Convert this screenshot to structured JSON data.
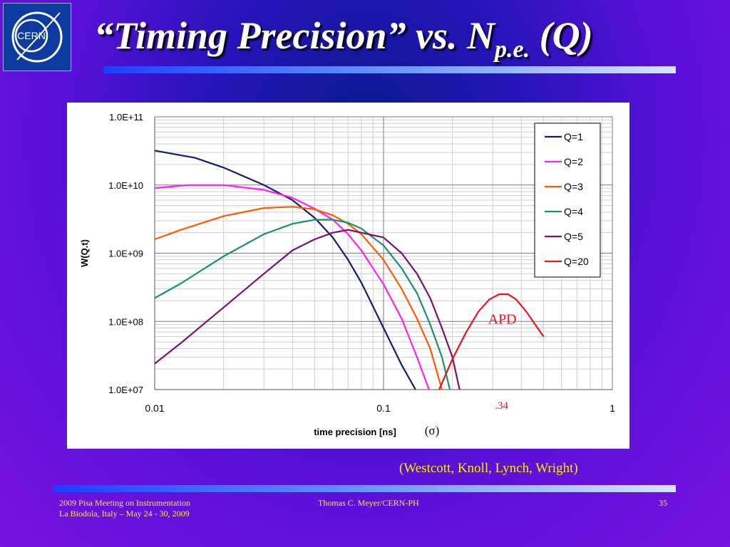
{
  "logo": {
    "text": "CERN"
  },
  "title": {
    "main": "“Timing Precision” vs. N",
    "subscript": "p.e.",
    "tail": " (Q)"
  },
  "credit": "(Westcott, Knoll, Lynch, Wright)",
  "footer": {
    "left_line1": "2009 Pisa Meeting on Instrumentation",
    "left_line2": "La Biodola, Italy – May 24 - 30, 2009",
    "center": "Thomas C. Meyer/CERN-PH",
    "page": "35"
  },
  "colors": {
    "accent_rule": "#5f8cff",
    "footer_text": "#ffe060",
    "credit_text": "#ffea00",
    "annotation": "#e8141e"
  },
  "chart_data": {
    "type": "line",
    "xlabel": "time precision [ns]",
    "ylabel": "W(Q.t)",
    "xscale": "log",
    "yscale": "log",
    "xlim": [
      0.01,
      1
    ],
    "ylim": [
      10000000,
      100000000000
    ],
    "xticks": [
      "0.01",
      "0.1",
      "1"
    ],
    "yticks": [
      "1.0E+07",
      "1.0E+08",
      "1.0E+09",
      "1.0E+10",
      "1.0E+11"
    ],
    "grid": true,
    "legend": "right",
    "series": [
      {
        "name": "Q=1",
        "color": "#1a1a6e",
        "points": [
          [
            0.01,
            32000000000.0
          ],
          [
            0.015,
            25000000000.0
          ],
          [
            0.02,
            18000000000.0
          ],
          [
            0.03,
            10000000000.0
          ],
          [
            0.04,
            6000000000.0
          ],
          [
            0.05,
            3300000000.0
          ],
          [
            0.06,
            1700000000.0
          ],
          [
            0.07,
            800000000.0
          ],
          [
            0.08,
            370000000.0
          ],
          [
            0.1,
            80000000.0
          ],
          [
            0.12,
            23000000.0
          ],
          [
            0.138,
            10000000.0
          ]
        ]
      },
      {
        "name": "Q=2",
        "color": "#ff22ee",
        "points": [
          [
            0.01,
            9000000000.0
          ],
          [
            0.014,
            10000000000.0
          ],
          [
            0.02,
            10000000000.0
          ],
          [
            0.03,
            8500000000.0
          ],
          [
            0.04,
            6500000000.0
          ],
          [
            0.05,
            4500000000.0
          ],
          [
            0.06,
            3100000000.0
          ],
          [
            0.07,
            1900000000.0
          ],
          [
            0.08,
            1100000000.0
          ],
          [
            0.1,
            350000000.0
          ],
          [
            0.12,
            110000000.0
          ],
          [
            0.14,
            30000000.0
          ],
          [
            0.158,
            10000000.0
          ]
        ]
      },
      {
        "name": "Q=3",
        "color": "#ff5a00",
        "points": [
          [
            0.01,
            1600000000.0
          ],
          [
            0.013,
            2200000000.0
          ],
          [
            0.02,
            3500000000.0
          ],
          [
            0.03,
            4600000000.0
          ],
          [
            0.04,
            4800000000.0
          ],
          [
            0.05,
            4400000000.0
          ],
          [
            0.06,
            3600000000.0
          ],
          [
            0.07,
            2700000000.0
          ],
          [
            0.08,
            1900000000.0
          ],
          [
            0.1,
            800000000.0
          ],
          [
            0.12,
            300000000.0
          ],
          [
            0.14,
            110000000.0
          ],
          [
            0.16,
            40000000.0
          ],
          [
            0.18,
            10000000.0
          ]
        ]
      },
      {
        "name": "Q=4",
        "color": "#1a9070",
        "points": [
          [
            0.01,
            220000000.0
          ],
          [
            0.013,
            360000000.0
          ],
          [
            0.02,
            900000000.0
          ],
          [
            0.03,
            1900000000.0
          ],
          [
            0.04,
            2700000000.0
          ],
          [
            0.05,
            3100000000.0
          ],
          [
            0.06,
            3100000000.0
          ],
          [
            0.07,
            2800000000.0
          ],
          [
            0.08,
            2300000000.0
          ],
          [
            0.1,
            1300000000.0
          ],
          [
            0.12,
            600000000.0
          ],
          [
            0.14,
            260000000.0
          ],
          [
            0.16,
            90000000.0
          ],
          [
            0.18,
            30000000.0
          ],
          [
            0.195,
            10000000.0
          ]
        ]
      },
      {
        "name": "Q=5",
        "color": "#7a1070",
        "points": [
          [
            0.01,
            24000000.0
          ],
          [
            0.013,
            48000000.0
          ],
          [
            0.02,
            160000000.0
          ],
          [
            0.03,
            500000000.0
          ],
          [
            0.04,
            1100000000.0
          ],
          [
            0.05,
            1600000000.0
          ],
          [
            0.06,
            2000000000.0
          ],
          [
            0.07,
            2200000000.0
          ],
          [
            0.08,
            2000000000.0
          ],
          [
            0.1,
            1700000000.0
          ],
          [
            0.12,
            1000000000.0
          ],
          [
            0.14,
            500000000.0
          ],
          [
            0.16,
            220000000.0
          ],
          [
            0.18,
            80000000.0
          ],
          [
            0.2,
            30000000.0
          ],
          [
            0.215,
            10000000.0
          ]
        ]
      },
      {
        "name": "Q=20",
        "color": "#e8141e",
        "points": [
          [
            0.175,
            10000000.0
          ],
          [
            0.2,
            28000000.0
          ],
          [
            0.23,
            70000000.0
          ],
          [
            0.26,
            140000000.0
          ],
          [
            0.29,
            210000000.0
          ],
          [
            0.32,
            250000000.0
          ],
          [
            0.35,
            250000000.0
          ],
          [
            0.38,
            210000000.0
          ],
          [
            0.42,
            140000000.0
          ],
          [
            0.46,
            90000000.0
          ],
          [
            0.5,
            60000000.0
          ]
        ]
      }
    ],
    "annotations": [
      {
        "text": "APD",
        "x": 0.34,
        "y": 60000000.0
      },
      {
        "text": ".34",
        "x": 0.34,
        "y": 5000000.0
      },
      {
        "text": "(σ)",
        "x": 0.34,
        "y": 3000000.0
      }
    ]
  }
}
